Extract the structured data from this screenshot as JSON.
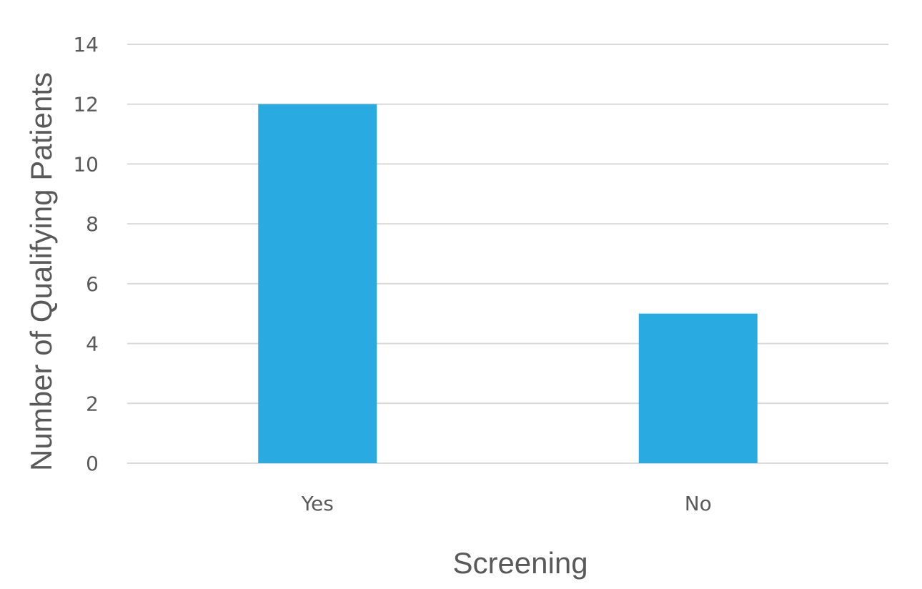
{
  "chart_data": {
    "type": "bar",
    "title": "",
    "xlabel": "Screening",
    "ylabel": "Number of Qualifying Patients",
    "categories": [
      "Yes",
      "No"
    ],
    "values": [
      12,
      5
    ],
    "ylim": [
      0,
      14
    ],
    "yticks": [
      "0",
      "2",
      "4",
      "6",
      "8",
      "10",
      "12",
      "14"
    ],
    "grid": true,
    "legend": "none",
    "bar_color": "#29ABE2",
    "grid_color": "#D9D9D9",
    "text_color": "#595959"
  }
}
